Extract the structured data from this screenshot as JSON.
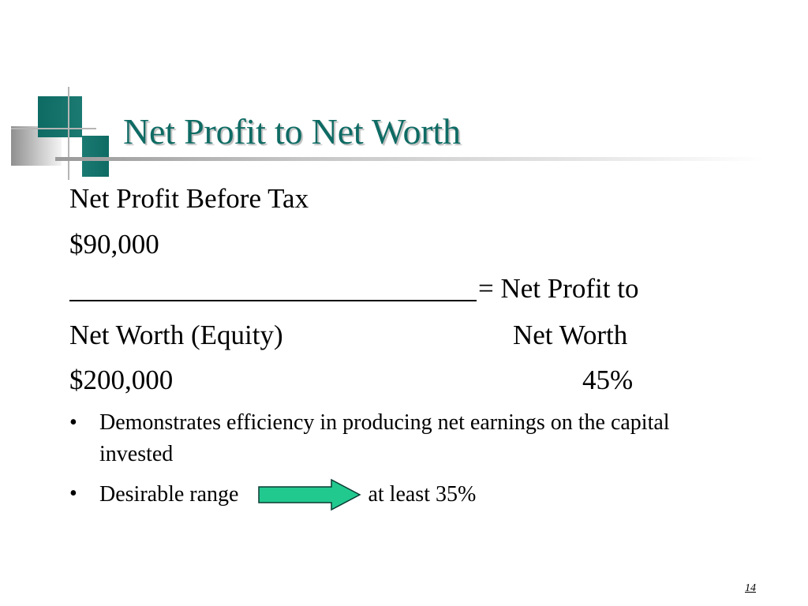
{
  "slide": {
    "title": "Net Profit to Net Worth",
    "numerator_label": "Net Profit Before Tax",
    "numerator_value": "$90,000",
    "equals_text": "=  Net Profit to",
    "denominator_label": "Net Worth (Equity)",
    "result_label": "Net Worth",
    "denominator_value": "$200,000",
    "result_value": "45%",
    "bullets": {
      "efficiency": "Demonstrates efficiency in producing net earnings on the capital invested",
      "range_label": "Desirable range",
      "range_value": "at least 35%"
    },
    "bullet_symbol": "•",
    "page_number": "14",
    "colors": {
      "title": "#0e6b64",
      "arrow_fill": "#22c98f"
    },
    "icons": {
      "arrow": "right-arrow-icon"
    }
  }
}
